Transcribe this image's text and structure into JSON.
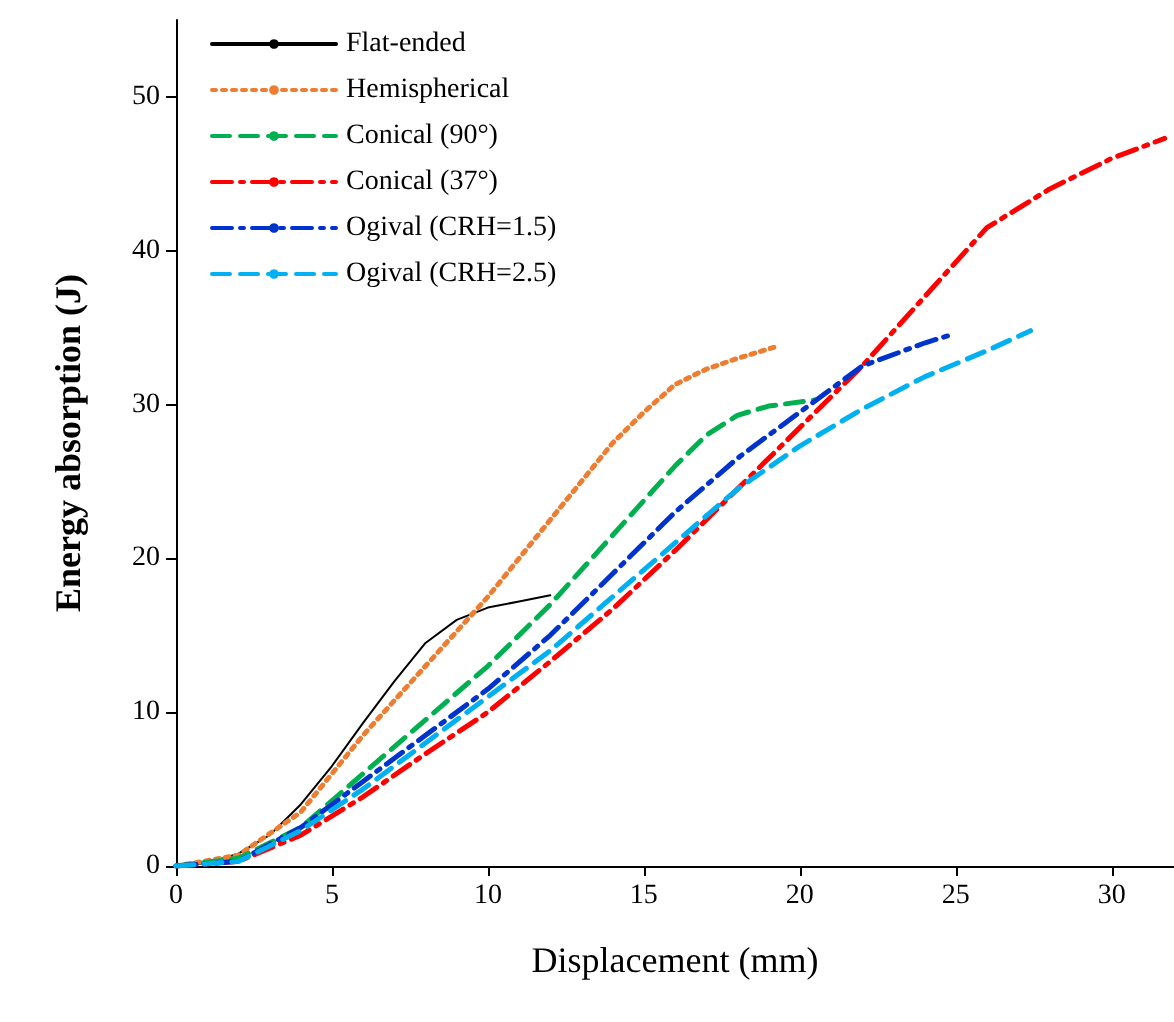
{
  "chart_data": {
    "type": "line",
    "xlabel": "Displacement (mm)",
    "ylabel": "Energy absorption (J)",
    "xlim": [
      0,
      32
    ],
    "xticks": [
      0,
      5,
      10,
      15,
      20,
      25,
      30
    ],
    "ylim": [
      0,
      55
    ],
    "yticks": [
      0,
      10,
      20,
      30,
      40,
      50
    ],
    "grid": false,
    "legend": "top left",
    "marker": "none",
    "series": [
      {
        "name": "Flat-ended",
        "color": "#000000",
        "line_style": "solid",
        "x": [
          0,
          1,
          2,
          3,
          4,
          5,
          6,
          7,
          8,
          9,
          10,
          11,
          12
        ],
        "values": [
          0,
          0.2,
          0.8,
          2,
          4,
          6.5,
          9.3,
          12,
          14.5,
          16,
          16.8,
          17.2,
          17.6
        ]
      },
      {
        "name": "Hemispherical",
        "color": "#ed7d31",
        "line_style": "dotted",
        "x": [
          0,
          2,
          4,
          6,
          8,
          10,
          12,
          14,
          15,
          16,
          17,
          18,
          19.3
        ],
        "values": [
          0,
          0.7,
          3.5,
          8.5,
          13,
          17.5,
          22.5,
          27.5,
          29.5,
          31.3,
          32.3,
          33,
          33.8
        ]
      },
      {
        "name": "Conical (90°)",
        "color": "#00b050",
        "line_style": "dashed",
        "x": [
          0,
          2,
          4,
          6,
          8,
          10,
          12,
          14,
          16,
          17,
          18,
          19,
          20.5
        ],
        "values": [
          0,
          0.5,
          2.5,
          6,
          9.5,
          13,
          17,
          21.5,
          26,
          28,
          29.3,
          29.9,
          30.3
        ]
      },
      {
        "name": "Conical (37°)",
        "color": "#ff0000",
        "line_style": "dashdot",
        "x": [
          0,
          2,
          4,
          6,
          8,
          10,
          12,
          14,
          16,
          18,
          20,
          22,
          24,
          26,
          28,
          30,
          31.7
        ],
        "values": [
          0,
          0.3,
          2,
          4.5,
          7.3,
          10,
          13.3,
          16.7,
          20.5,
          24.5,
          28.5,
          32.5,
          37,
          41.5,
          44,
          46,
          47.3
        ]
      },
      {
        "name": "Ogival (CRH=1.5)",
        "color": "#0033cc",
        "line_style": "dashdot",
        "x": [
          0,
          2,
          4,
          6,
          8,
          10,
          12,
          14,
          16,
          18,
          20,
          22,
          24,
          24.8
        ],
        "values": [
          0,
          0.3,
          2.5,
          5.5,
          8.5,
          11.5,
          15,
          19,
          23,
          26.5,
          29.5,
          32.5,
          34,
          34.5
        ]
      },
      {
        "name": "Ogival (CRH=2.5)",
        "color": "#00b0f0",
        "line_style": "dashed",
        "x": [
          0,
          2,
          4,
          6,
          8,
          10,
          12,
          14,
          16,
          18,
          20,
          22,
          24,
          26,
          27.4
        ],
        "values": [
          0,
          0.3,
          2.3,
          5,
          8,
          11,
          14,
          17.5,
          21,
          24.5,
          27.3,
          29.7,
          31.8,
          33.5,
          34.8
        ]
      }
    ]
  }
}
